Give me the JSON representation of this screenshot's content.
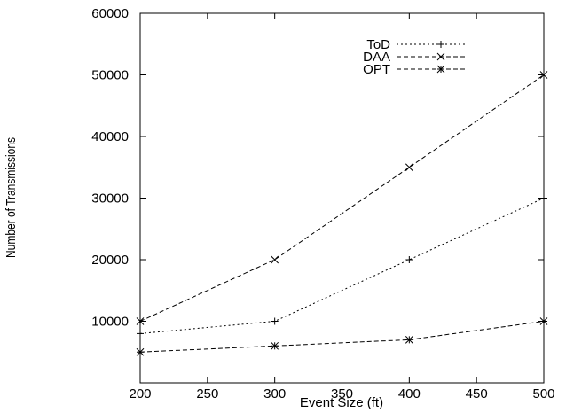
{
  "chart_data": {
    "type": "line",
    "title": "",
    "xlabel": "Event Size (ft)",
    "ylabel": "Number of Transmissions",
    "xlim": [
      200,
      500
    ],
    "ylim": [
      0,
      60000
    ],
    "xticks": [
      "200",
      "250",
      "300",
      "350",
      "400",
      "450",
      "500"
    ],
    "yticks": [
      "10000",
      "20000",
      "30000",
      "40000",
      "50000",
      "60000"
    ],
    "grid": false,
    "legend_position": "top-right",
    "x": [
      200,
      300,
      400,
      500
    ],
    "series": [
      {
        "name": "ToD",
        "values": [
          8000,
          10000,
          20000,
          30000
        ],
        "marker": "plus",
        "dash": "dotted",
        "color": "#000000"
      },
      {
        "name": "DAA",
        "values": [
          10000,
          20000,
          35000,
          50000
        ],
        "marker": "cross",
        "dash": "dashed",
        "color": "#000000"
      },
      {
        "name": "OPT",
        "values": [
          5000,
          6000,
          7000,
          10000
        ],
        "marker": "star",
        "dash": "dashed",
        "color": "#000000"
      }
    ]
  }
}
